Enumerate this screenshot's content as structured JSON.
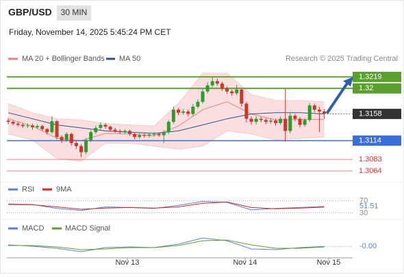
{
  "chart_data": {
    "type": "candlestick",
    "symbol": "GBP/USD",
    "timeframe": "30 MIN",
    "timestamp": "Friday, November 14, 2025 5:45:24 PM CET",
    "credit": "Research © 2025 Trading Central",
    "up_color": "#2e9b2e",
    "down_color": "#c23b2b",
    "ylim": [
      1.3055,
      1.3233
    ],
    "ohlc": [
      [
        1.3147,
        1.3151,
        1.3141,
        1.3145
      ],
      [
        1.3145,
        1.3148,
        1.3139,
        1.3142
      ],
      [
        1.3142,
        1.3145,
        1.3137,
        1.314
      ],
      [
        1.314,
        1.3143,
        1.3135,
        1.3138
      ],
      [
        1.3138,
        1.3142,
        1.3135,
        1.3139
      ],
      [
        1.3139,
        1.3142,
        1.3132,
        1.3136
      ],
      [
        1.3136,
        1.3141,
        1.3133,
        1.3138
      ],
      [
        1.3138,
        1.314,
        1.313,
        1.3133
      ],
      [
        1.3133,
        1.3135,
        1.3124,
        1.3128
      ],
      [
        1.3128,
        1.3154,
        1.3125,
        1.3146
      ],
      [
        1.3146,
        1.3148,
        1.3116,
        1.312
      ],
      [
        1.312,
        1.3123,
        1.311,
        1.3115
      ],
      [
        1.3115,
        1.3128,
        1.3112,
        1.3125
      ],
      [
        1.3125,
        1.3127,
        1.3106,
        1.311
      ],
      [
        1.311,
        1.3113,
        1.31,
        1.3105
      ],
      [
        1.3105,
        1.3108,
        1.3087,
        1.3095
      ],
      [
        1.3095,
        1.3118,
        1.3092,
        1.3115
      ],
      [
        1.3115,
        1.3131,
        1.3112,
        1.3128
      ],
      [
        1.3128,
        1.3139,
        1.3125,
        1.3135
      ],
      [
        1.3135,
        1.3144,
        1.3132,
        1.314
      ],
      [
        1.314,
        1.3143,
        1.3134,
        1.3137
      ],
      [
        1.3137,
        1.3139,
        1.3129,
        1.3132
      ],
      [
        1.3132,
        1.3135,
        1.3127,
        1.313
      ],
      [
        1.313,
        1.3133,
        1.3125,
        1.3128
      ],
      [
        1.3128,
        1.3133,
        1.3125,
        1.313
      ],
      [
        1.313,
        1.3132,
        1.3122,
        1.3125
      ],
      [
        1.3125,
        1.3127,
        1.3116,
        1.312
      ],
      [
        1.312,
        1.3126,
        1.3117,
        1.3123
      ],
      [
        1.3123,
        1.3126,
        1.3119,
        1.3122
      ],
      [
        1.3122,
        1.3127,
        1.3119,
        1.3124
      ],
      [
        1.3124,
        1.3128,
        1.3121,
        1.3125
      ],
      [
        1.3125,
        1.3127,
        1.312,
        1.3123
      ],
      [
        1.3123,
        1.3131,
        1.311,
        1.3128
      ],
      [
        1.3128,
        1.3148,
        1.3125,
        1.3145
      ],
      [
        1.3145,
        1.317,
        1.3142,
        1.3165
      ],
      [
        1.3165,
        1.3168,
        1.3156,
        1.316
      ],
      [
        1.316,
        1.3166,
        1.3157,
        1.3162
      ],
      [
        1.3162,
        1.3165,
        1.3154,
        1.3158
      ],
      [
        1.3158,
        1.3174,
        1.3155,
        1.317
      ],
      [
        1.317,
        1.3182,
        1.3167,
        1.3178
      ],
      [
        1.3178,
        1.3199,
        1.3175,
        1.3195
      ],
      [
        1.3195,
        1.321,
        1.3192,
        1.3205
      ],
      [
        1.3205,
        1.3218,
        1.3202,
        1.3212
      ],
      [
        1.3212,
        1.3216,
        1.3204,
        1.3208
      ],
      [
        1.3208,
        1.3211,
        1.3196,
        1.32
      ],
      [
        1.32,
        1.3203,
        1.3191,
        1.3195
      ],
      [
        1.3195,
        1.3198,
        1.3188,
        1.3192
      ],
      [
        1.3192,
        1.3206,
        1.3189,
        1.3198
      ],
      [
        1.3198,
        1.3201,
        1.317,
        1.3175
      ],
      [
        1.3175,
        1.3178,
        1.3144,
        1.315
      ],
      [
        1.315,
        1.3154,
        1.314,
        1.3145
      ],
      [
        1.3145,
        1.3154,
        1.3141,
        1.315
      ],
      [
        1.315,
        1.3153,
        1.3144,
        1.3148
      ],
      [
        1.3148,
        1.3151,
        1.3141,
        1.3145
      ],
      [
        1.3145,
        1.3151,
        1.3142,
        1.3147
      ],
      [
        1.3147,
        1.315,
        1.3139,
        1.3143
      ],
      [
        1.3143,
        1.3154,
        1.314,
        1.315
      ],
      [
        1.315,
        1.32,
        1.3112,
        1.313
      ],
      [
        1.313,
        1.3159,
        1.3126,
        1.3155
      ],
      [
        1.3155,
        1.3158,
        1.3146,
        1.315
      ],
      [
        1.315,
        1.3153,
        1.3136,
        1.314
      ],
      [
        1.314,
        1.3151,
        1.3137,
        1.3148
      ],
      [
        1.3148,
        1.3176,
        1.3145,
        1.3172
      ],
      [
        1.3172,
        1.3175,
        1.3161,
        1.3165
      ],
      [
        1.3165,
        1.317,
        1.3128,
        1.3162
      ],
      [
        1.3162,
        1.3166,
        1.315,
        1.3158
      ]
    ],
    "x": [
      0,
      5,
      10,
      15,
      20,
      25,
      30,
      35,
      40,
      45,
      50,
      55,
      60,
      65
    ],
    "ma20": {
      "name": "MA 20 + Bollinger Bands",
      "color": "#f08080",
      "values": [
        1.315,
        1.3138,
        1.3118,
        1.3114,
        1.3126,
        1.3125,
        1.3122,
        1.3138,
        1.3165,
        1.3178,
        1.3158,
        1.3148,
        1.3149,
        1.3149
      ]
    },
    "bb_upper": {
      "color": "#f6c9cc",
      "values": [
        1.3175,
        1.316,
        1.315,
        1.3148,
        1.3142,
        1.314,
        1.3138,
        1.3175,
        1.3225,
        1.3225,
        1.319,
        1.318,
        1.318,
        1.3178
      ]
    },
    "bb_lower": {
      "color": "#f6c9cc",
      "values": [
        1.3125,
        1.3115,
        1.3085,
        1.308,
        1.311,
        1.311,
        1.3105,
        1.31,
        1.3105,
        1.313,
        1.3125,
        1.3115,
        1.3118,
        1.312
      ]
    },
    "ma50": {
      "name": "MA 50",
      "color": "#2c4f8c",
      "values": [
        1.316,
        1.315,
        1.314,
        1.3135,
        1.313,
        1.3128,
        1.3126,
        1.313,
        1.314,
        1.315,
        1.3158,
        1.316,
        1.316,
        1.3158
      ]
    },
    "levels": [
      {
        "value": 1.3219,
        "color": "#5aa02c"
      },
      {
        "value": 1.32,
        "color": "#5aa02c"
      },
      {
        "value": 1.3114,
        "color": "#3a6fd8"
      },
      {
        "value": 1.3083,
        "color": "#e03030"
      },
      {
        "value": 1.3064,
        "color": "#e03030"
      }
    ],
    "current": 1.3158,
    "xticks": [
      {
        "value": 24.5,
        "label": "Nov 13"
      },
      {
        "value": 48.7,
        "label": "Nov 14"
      },
      {
        "value": 65.9,
        "label": "Nov 15"
      }
    ],
    "rsi": {
      "ylim": [
        15,
        85
      ],
      "yticks": [
        70,
        30
      ],
      "series": [
        {
          "name": "RSI",
          "color": "#5b7fd6",
          "values": [
            60,
            58,
            45,
            38,
            50,
            48,
            45,
            55,
            68,
            65,
            40,
            45,
            48,
            51.51
          ]
        },
        {
          "name": "9MA",
          "color": "#e02020",
          "values": [
            58,
            57,
            50,
            42,
            46,
            48,
            46,
            50,
            62,
            66,
            48,
            44,
            46,
            49
          ]
        }
      ]
    },
    "macd": {
      "ylim": [
        -0.0015,
        0.0015
      ],
      "series": [
        {
          "name": "MACD",
          "color": "#5b7fd6",
          "values": [
            0.0002,
            0.0,
            -0.0003,
            -0.0008,
            -0.0002,
            -0.0001,
            -0.0002,
            0.0003,
            0.0012,
            0.0008,
            -0.0004,
            -0.0005,
            -0.0002,
            -2e-05
          ],
          "value_labels": [
            null,
            null,
            null,
            null,
            null,
            null,
            null,
            null,
            null,
            null,
            null,
            null,
            null,
            "-0.00"
          ]
        },
        {
          "name": "MACD Signal",
          "color": "#5aa02c",
          "values": [
            0.0001,
            0.0001,
            -0.0001,
            -0.0005,
            -0.0004,
            -0.0002,
            -0.0002,
            0.0001,
            0.0008,
            0.0009,
            0.0002,
            -0.0003,
            -0.0003,
            -0.0001
          ]
        }
      ]
    }
  }
}
